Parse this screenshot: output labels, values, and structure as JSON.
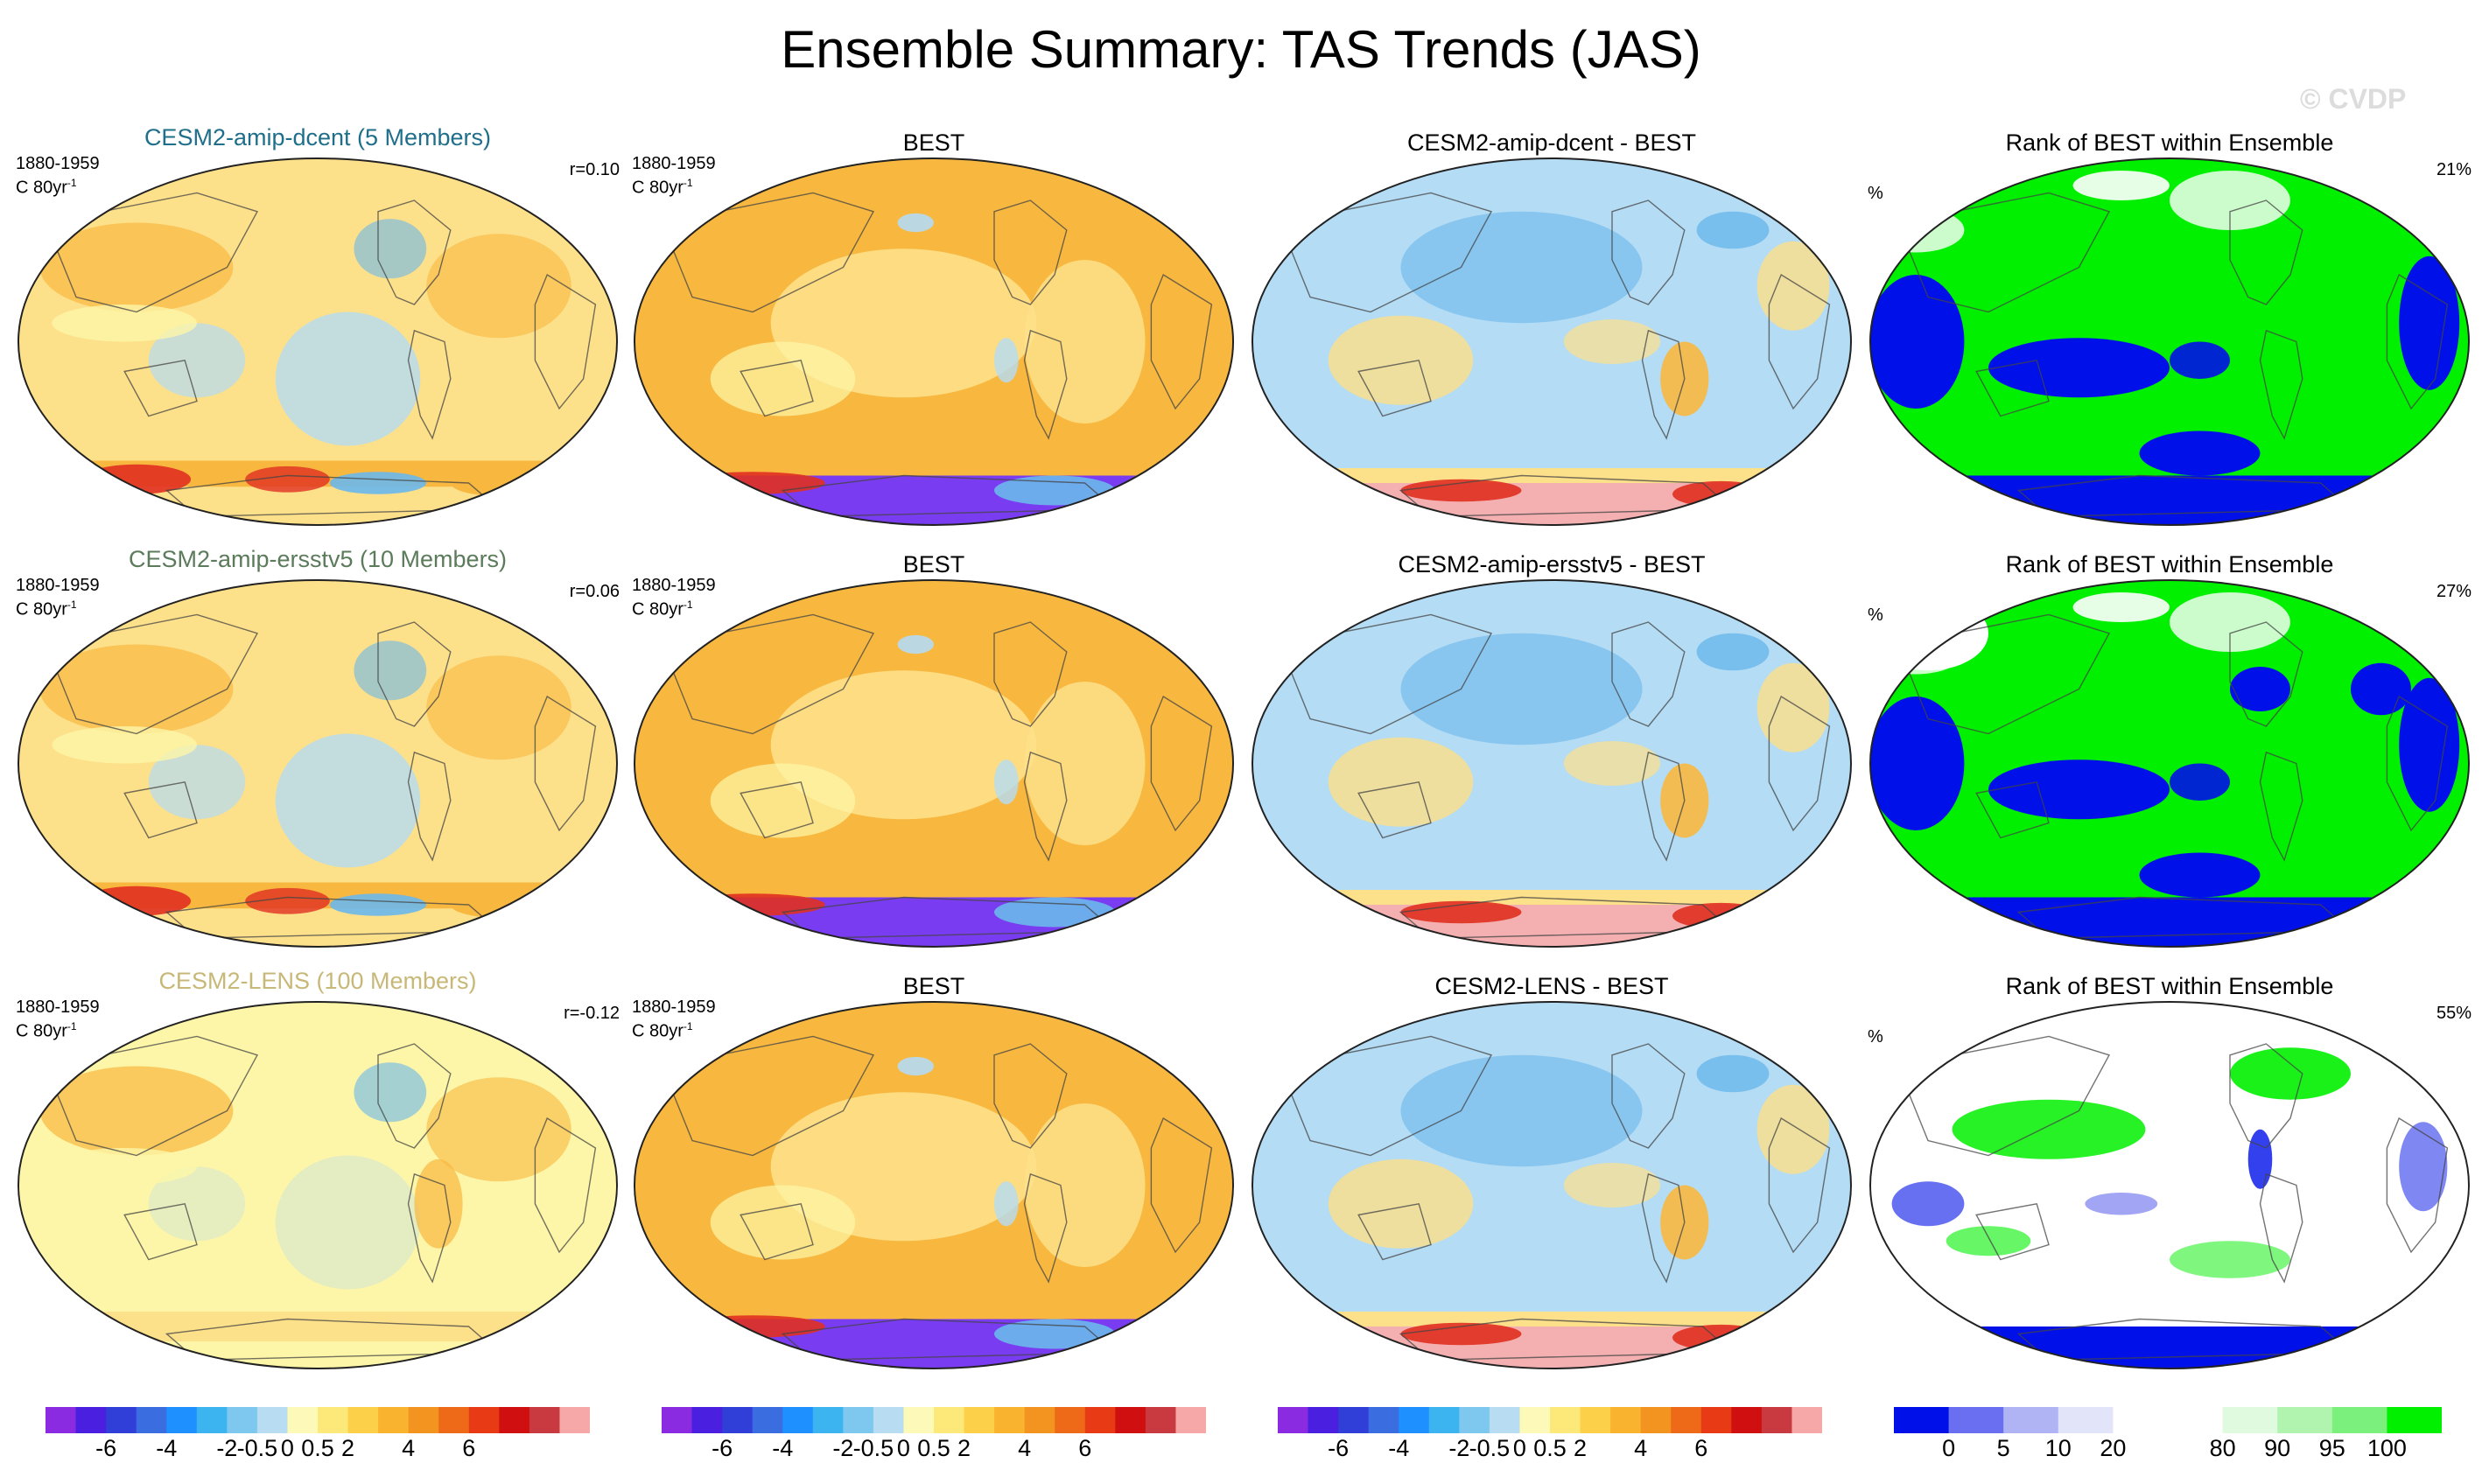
{
  "page": {
    "title": "Ensemble Summary: TAS Trends (JAS)",
    "copyright": "© CVDP"
  },
  "colors": {
    "title_dcent": "#1f6f8b",
    "title_ersstv5": "#5b7b5b",
    "title_lens": "#c8b878",
    "pale_yellow": "#fdf6a8",
    "yellow": "#fde08a",
    "orange": "#f8b840",
    "light_blue": "#b4dcf4",
    "mid_blue": "#6ab8ec",
    "purple": "#7a3cf0",
    "pink": "#f4b0b0",
    "red": "#e03020",
    "green": "#00f000",
    "blue": "#0010e8"
  },
  "rows": [
    {
      "ensemble": {
        "title": "CESM2-amip-dcent (5 Members)",
        "period": "1880-1959",
        "units": "C 80yr",
        "units_exp": "-1",
        "r": "r=0.10",
        "color_key": "title_dcent"
      },
      "obs": {
        "title": "BEST",
        "period": "1880-1959",
        "units": "C 80yr",
        "units_exp": "-1"
      },
      "diff": {
        "title": "CESM2-amip-dcent - BEST"
      },
      "rank": {
        "title": "Rank of BEST within Ensemble",
        "unit": "%",
        "pct": "21%"
      }
    },
    {
      "ensemble": {
        "title": "CESM2-amip-ersstv5 (10 Members)",
        "period": "1880-1959",
        "units": "C 80yr",
        "units_exp": "-1",
        "r": "r=0.06",
        "color_key": "title_ersstv5"
      },
      "obs": {
        "title": "BEST",
        "period": "1880-1959",
        "units": "C 80yr",
        "units_exp": "-1"
      },
      "diff": {
        "title": "CESM2-amip-ersstv5 - BEST"
      },
      "rank": {
        "title": "Rank of BEST within Ensemble",
        "unit": "%",
        "pct": "27%"
      }
    },
    {
      "ensemble": {
        "title": "CESM2-LENS (100 Members)",
        "period": "1880-1959",
        "units": "C 80yr",
        "units_exp": "-1",
        "r": "r=-0.12",
        "color_key": "title_lens"
      },
      "obs": {
        "title": "BEST",
        "period": "1880-1959",
        "units": "C 80yr",
        "units_exp": "-1"
      },
      "diff": {
        "title": "CESM2-LENS - BEST"
      },
      "rank": {
        "title": "Rank of BEST within Ensemble",
        "unit": "%",
        "pct": "55%"
      }
    }
  ],
  "chart_data": {
    "type": "heatmap",
    "title": "Ensemble Summary: TAS Trends (JAS)",
    "description_units": "C 80yr-1",
    "trend_colorbar": {
      "colors": [
        "#8a2be2",
        "#4b1fe0",
        "#2f3fd8",
        "#3a6ee0",
        "#1e90ff",
        "#3cb4f0",
        "#7ec8f0",
        "#b8dcf2",
        "#fdf9b8",
        "#fde87a",
        "#fdd04a",
        "#f9b32e",
        "#f39420",
        "#ee6a18",
        "#e83a14",
        "#d01010",
        "#c83a40",
        "#f6a8a8"
      ],
      "tick_labels": [
        "-6",
        "-4",
        "-2",
        "-0.5",
        "0",
        "0.5",
        "2",
        "4",
        "6"
      ],
      "tick_boundaries": [
        2,
        4,
        6,
        7,
        8,
        9,
        10,
        12,
        14
      ]
    },
    "rank_colorbar": {
      "colors": [
        "#0010e8",
        "#6a6ef0",
        "#b0b4f4",
        "#e2e4fa",
        "#ffffff",
        "#ffffff",
        "#e0fae0",
        "#b0f4b0",
        "#7cf07c",
        "#00f000"
      ],
      "tick_labels": [
        "0",
        "5",
        "10",
        "20",
        "80",
        "90",
        "95",
        "100"
      ],
      "tick_boundaries": [
        1,
        2,
        3,
        4,
        6,
        7,
        8,
        9
      ]
    },
    "panels": [
      {
        "row": 0,
        "col": 0,
        "kind": "trend",
        "r": 0.1
      },
      {
        "row": 0,
        "col": 1,
        "kind": "trend"
      },
      {
        "row": 0,
        "col": 2,
        "kind": "diff"
      },
      {
        "row": 0,
        "col": 3,
        "kind": "rank",
        "pct_within": 21
      },
      {
        "row": 1,
        "col": 0,
        "kind": "trend",
        "r": 0.06
      },
      {
        "row": 1,
        "col": 1,
        "kind": "trend"
      },
      {
        "row": 1,
        "col": 2,
        "kind": "diff"
      },
      {
        "row": 1,
        "col": 3,
        "kind": "rank",
        "pct_within": 27
      },
      {
        "row": 2,
        "col": 0,
        "kind": "trend",
        "r": -0.12
      },
      {
        "row": 2,
        "col": 1,
        "kind": "trend"
      },
      {
        "row": 2,
        "col": 2,
        "kind": "diff"
      },
      {
        "row": 2,
        "col": 3,
        "kind": "rank",
        "pct_within": 55
      }
    ]
  }
}
